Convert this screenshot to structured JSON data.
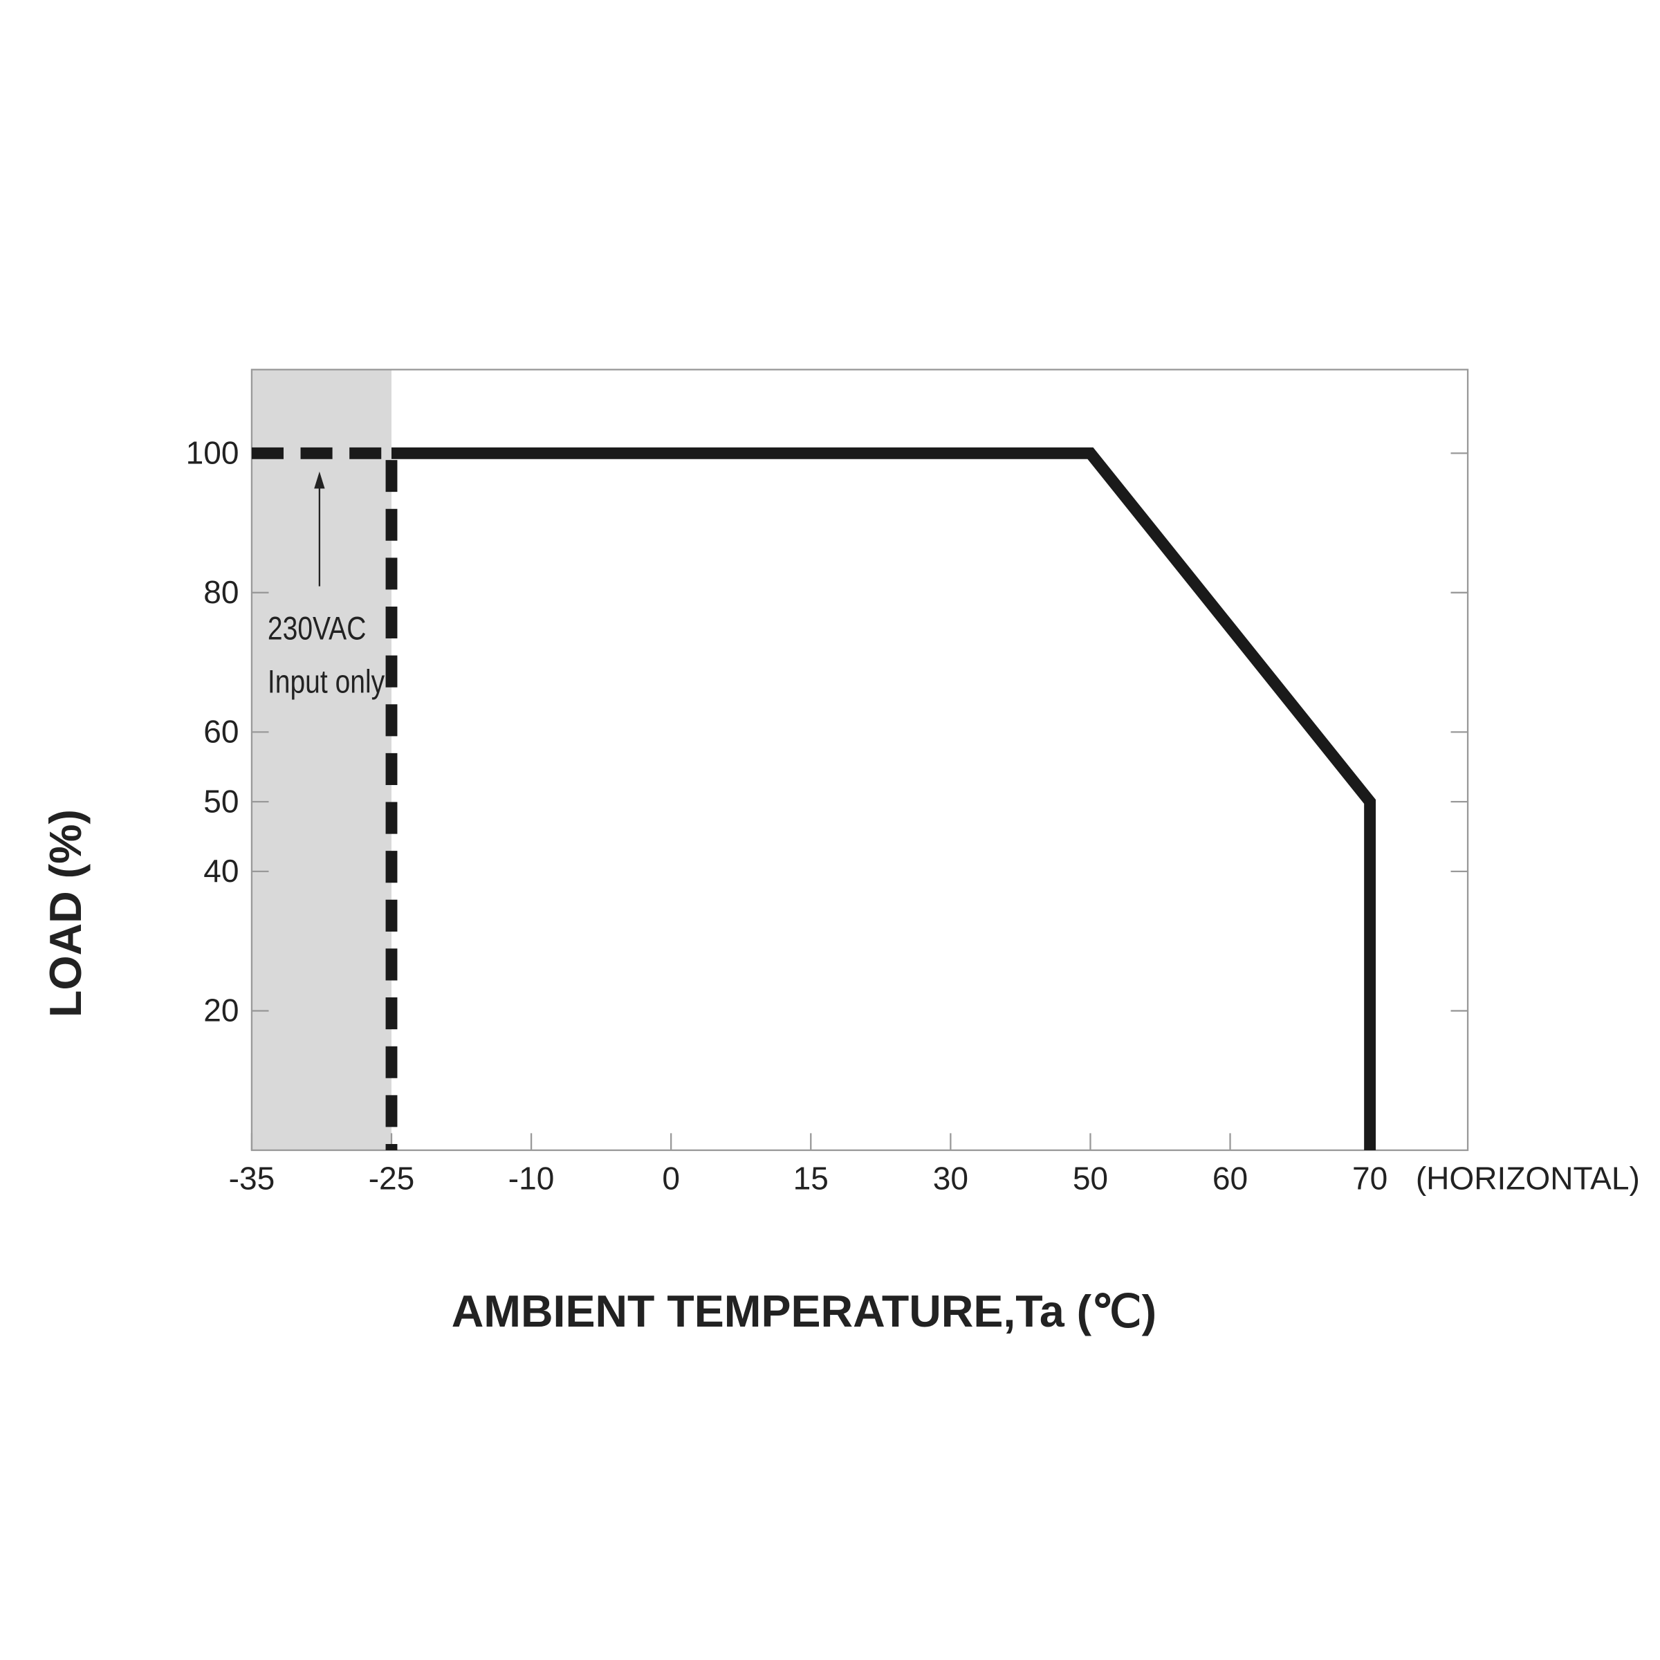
{
  "chart_data": {
    "type": "line",
    "x_label": "AMBIENT TEMPERATURE,Ta (℃)",
    "y_label": "LOAD (%)",
    "x_note": "(HORIZONTAL)",
    "xlim": [
      -35,
      77
    ],
    "xticks": [
      -35,
      -25,
      -10,
      0,
      15,
      30,
      50,
      60,
      70
    ],
    "ylim": [
      0,
      112
    ],
    "yticks": [
      20,
      40,
      50,
      60,
      80,
      100
    ],
    "shaded_region": {
      "x": [
        -35,
        -25
      ],
      "color": "#d9d9d9"
    },
    "annotation": {
      "lines": [
        "230VAC",
        "Input only"
      ]
    },
    "series": [
      {
        "color": "#1a1a1a",
        "dashed": true,
        "x": [
          -35,
          -25,
          -25
        ],
        "values": [
          100,
          100,
          0
        ]
      },
      {
        "color": "#1a1a1a",
        "dashed": false,
        "x": [
          -25,
          50,
          70,
          70
        ],
        "values": [
          100,
          100,
          50,
          0
        ]
      }
    ]
  }
}
